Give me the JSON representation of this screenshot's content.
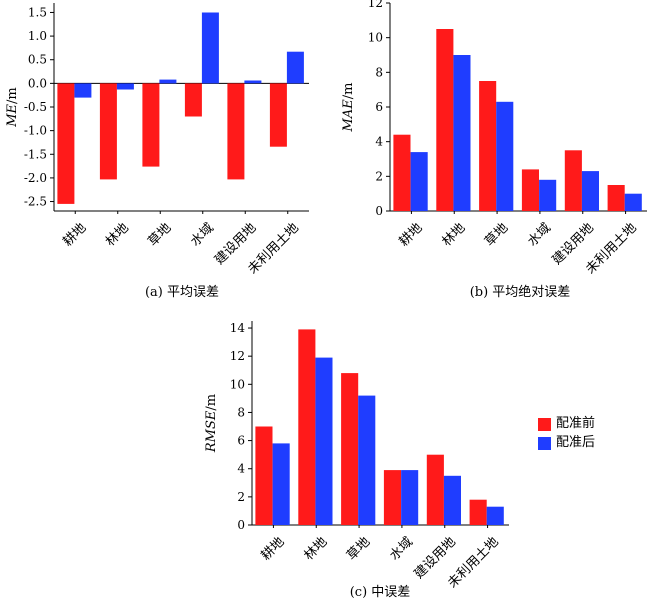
{
  "colors": {
    "before": "#ff1a1a",
    "after": "#1f3dff"
  },
  "legend": {
    "before": "配准前",
    "after": "配准后"
  },
  "chart_data": [
    {
      "type": "bar",
      "id": "a",
      "caption": "(a) 平均误差",
      "ylabel_main": "ME",
      "ylabel_unit": "/m",
      "categories": [
        "耕地",
        "林地",
        "草地",
        "水域",
        "建设用地",
        "未利用土地"
      ],
      "series": [
        {
          "name": "配准前",
          "values": [
            -2.55,
            -2.03,
            -1.76,
            -0.7,
            -2.03,
            -1.34
          ]
        },
        {
          "name": "配准后",
          "values": [
            -0.3,
            -0.13,
            0.08,
            1.5,
            0.06,
            0.67
          ]
        }
      ],
      "yticks": [
        "1.5",
        "1.0",
        "0.5",
        "0.0",
        "-0.5",
        "-1.0",
        "-1.5",
        "-2.0",
        "-2.5"
      ],
      "ylim": [
        -2.7,
        1.7
      ]
    },
    {
      "type": "bar",
      "id": "b",
      "caption": "(b) 平均绝对误差",
      "ylabel_main": "MAE",
      "ylabel_unit": "/m",
      "categories": [
        "耕地",
        "林地",
        "草地",
        "水域",
        "建设用地",
        "未利用土地"
      ],
      "series": [
        {
          "name": "配准前",
          "values": [
            4.4,
            10.5,
            7.5,
            2.4,
            3.5,
            1.5
          ]
        },
        {
          "name": "配准后",
          "values": [
            3.4,
            9.0,
            6.3,
            1.8,
            2.3,
            1.0
          ]
        }
      ],
      "yticks": [
        "0",
        "2",
        "4",
        "6",
        "8",
        "10",
        "12"
      ],
      "ylim": [
        0,
        12
      ]
    },
    {
      "type": "bar",
      "id": "c",
      "caption": "(c) 中误差",
      "ylabel_main": "RMSE",
      "ylabel_unit": "/m",
      "categories": [
        "耕地",
        "林地",
        "草地",
        "水域",
        "建设用地",
        "未利用土地"
      ],
      "series": [
        {
          "name": "配准前",
          "values": [
            7.0,
            13.9,
            10.8,
            3.9,
            5.0,
            1.8
          ]
        },
        {
          "name": "配准后",
          "values": [
            5.8,
            11.9,
            9.2,
            3.9,
            3.5,
            1.3
          ]
        }
      ],
      "yticks": [
        "0",
        "2",
        "4",
        "6",
        "8",
        "10",
        "12",
        "14"
      ],
      "ylim": [
        0,
        14.5
      ]
    }
  ]
}
